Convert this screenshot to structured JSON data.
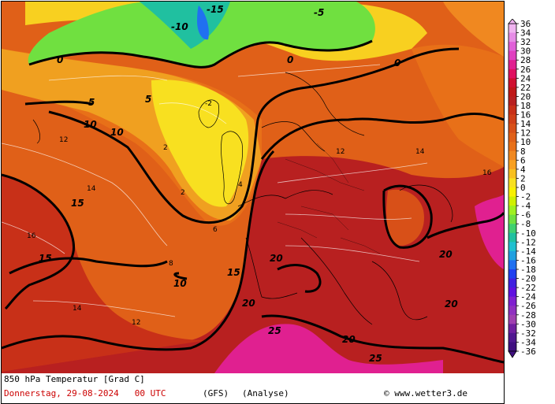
{
  "map": {
    "title": "850 hPa Temperatur [Grad C]",
    "date": "Donnerstag, 29-08-2024",
    "time": "00 UTC",
    "model": "(GFS)",
    "run_type": "(Analyse)",
    "credit": "© www.wetter3.de",
    "legend": {
      "ticks": [
        "36",
        "34",
        "32",
        "30",
        "28",
        "26",
        "24",
        "22",
        "20",
        "18",
        "16",
        "14",
        "12",
        "10",
        "8",
        "6",
        "4",
        "2",
        "0",
        "-2",
        "-4",
        "-6",
        "-8",
        "-10",
        "-12",
        "-14",
        "-16",
        "-18",
        "-20",
        "-22",
        "-24",
        "-26",
        "-28",
        "-30",
        "-32",
        "-34",
        "-36"
      ],
      "colors": [
        "#f0b4f0",
        "#e68ce6",
        "#e060d8",
        "#e040c0",
        "#e02090",
        "#e01060",
        "#d01030",
        "#c01818",
        "#b82020",
        "#c83018",
        "#d04018",
        "#d85018",
        "#e06018",
        "#e87018",
        "#f08820",
        "#f8a020",
        "#f8c020",
        "#f8e020",
        "#f8f000",
        "#d0f000",
        "#a0f020",
        "#70e040",
        "#40d070",
        "#20c0a0",
        "#20c0d0",
        "#20a0e0",
        "#2070f0",
        "#2040f0",
        "#4020e0",
        "#6010e0",
        "#8020d0",
        "#9030c0",
        "#a040b0",
        "#7020a0",
        "#501890",
        "#401080"
      ]
    },
    "contour_labels_bold": [
      "10",
      "10",
      "10",
      "15",
      "15",
      "15",
      "20",
      "20",
      "20",
      "20",
      "20",
      "25",
      "25",
      "5",
      "5",
      "0",
      "0",
      "0",
      "-5",
      "-10",
      "-15"
    ],
    "contour_labels_thin": [
      "12",
      "14",
      "16",
      "12",
      "14",
      "8",
      "6",
      "4",
      "2",
      "-2",
      "2",
      "14",
      "16",
      "12"
    ]
  }
}
